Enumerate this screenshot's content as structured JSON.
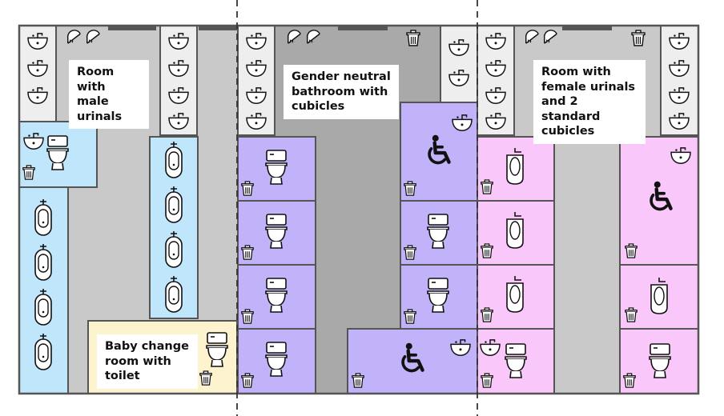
{
  "labels": {
    "male_room": "Room with male urinals",
    "neutral_room": "Gender neutral bathroom with cubicles",
    "female_room": "Room with female urinals and 2 standard cubicles",
    "baby_room": "Baby change room with toilet"
  },
  "colors": {
    "floor": "#c9c9c9",
    "neutral_floor": "#a9a9a9",
    "sink_area": "#eeeeee",
    "male": "#bfe6fb",
    "female": "#fac7fa",
    "neutral": "#c1b2fa",
    "baby": "#fdf3cf",
    "wall": "#555555"
  },
  "icons": [
    "sink-icon",
    "hand-dryer-icon",
    "bin-icon",
    "toilet-icon",
    "urinal-icon",
    "female-urinal-icon",
    "wheelchair-icon"
  ]
}
